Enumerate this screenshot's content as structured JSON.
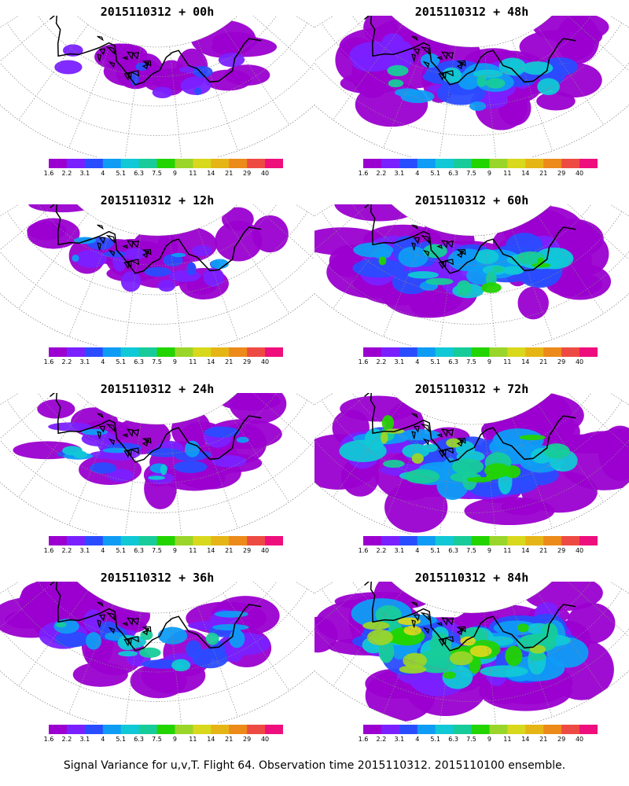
{
  "panels": [
    {
      "title": "2015110312 + 00h",
      "intensity": 0.15
    },
    {
      "title": "2015110312 + 48h",
      "intensity": 0.55
    },
    {
      "title": "2015110312 + 12h",
      "intensity": 0.25
    },
    {
      "title": "2015110312 + 60h",
      "intensity": 0.65
    },
    {
      "title": "2015110312 + 24h",
      "intensity": 0.35
    },
    {
      "title": "2015110312 + 72h",
      "intensity": 0.8
    },
    {
      "title": "2015110312 + 36h",
      "intensity": 0.45
    },
    {
      "title": "2015110312 + 84h",
      "intensity": 0.9
    }
  ],
  "colorbar": {
    "labels": [
      "1.6",
      "2.2",
      "3.1",
      "4",
      "5.1",
      "6.3",
      "7.5",
      "9",
      "11",
      "14",
      "21",
      "29",
      "40"
    ],
    "colors": [
      "#9b00d0",
      "#7a20ff",
      "#2a4cff",
      "#0f9cf5",
      "#11c8d6",
      "#17cc9a",
      "#22d400",
      "#9ad52a",
      "#d8d81c",
      "#e5b516",
      "#ec8a1a",
      "#ee4a44",
      "#ee0f7c"
    ]
  },
  "footer": "Signal Variance for u,v,T. Flight 64. Observation time 2015110312. 2015110100 ensemble."
}
